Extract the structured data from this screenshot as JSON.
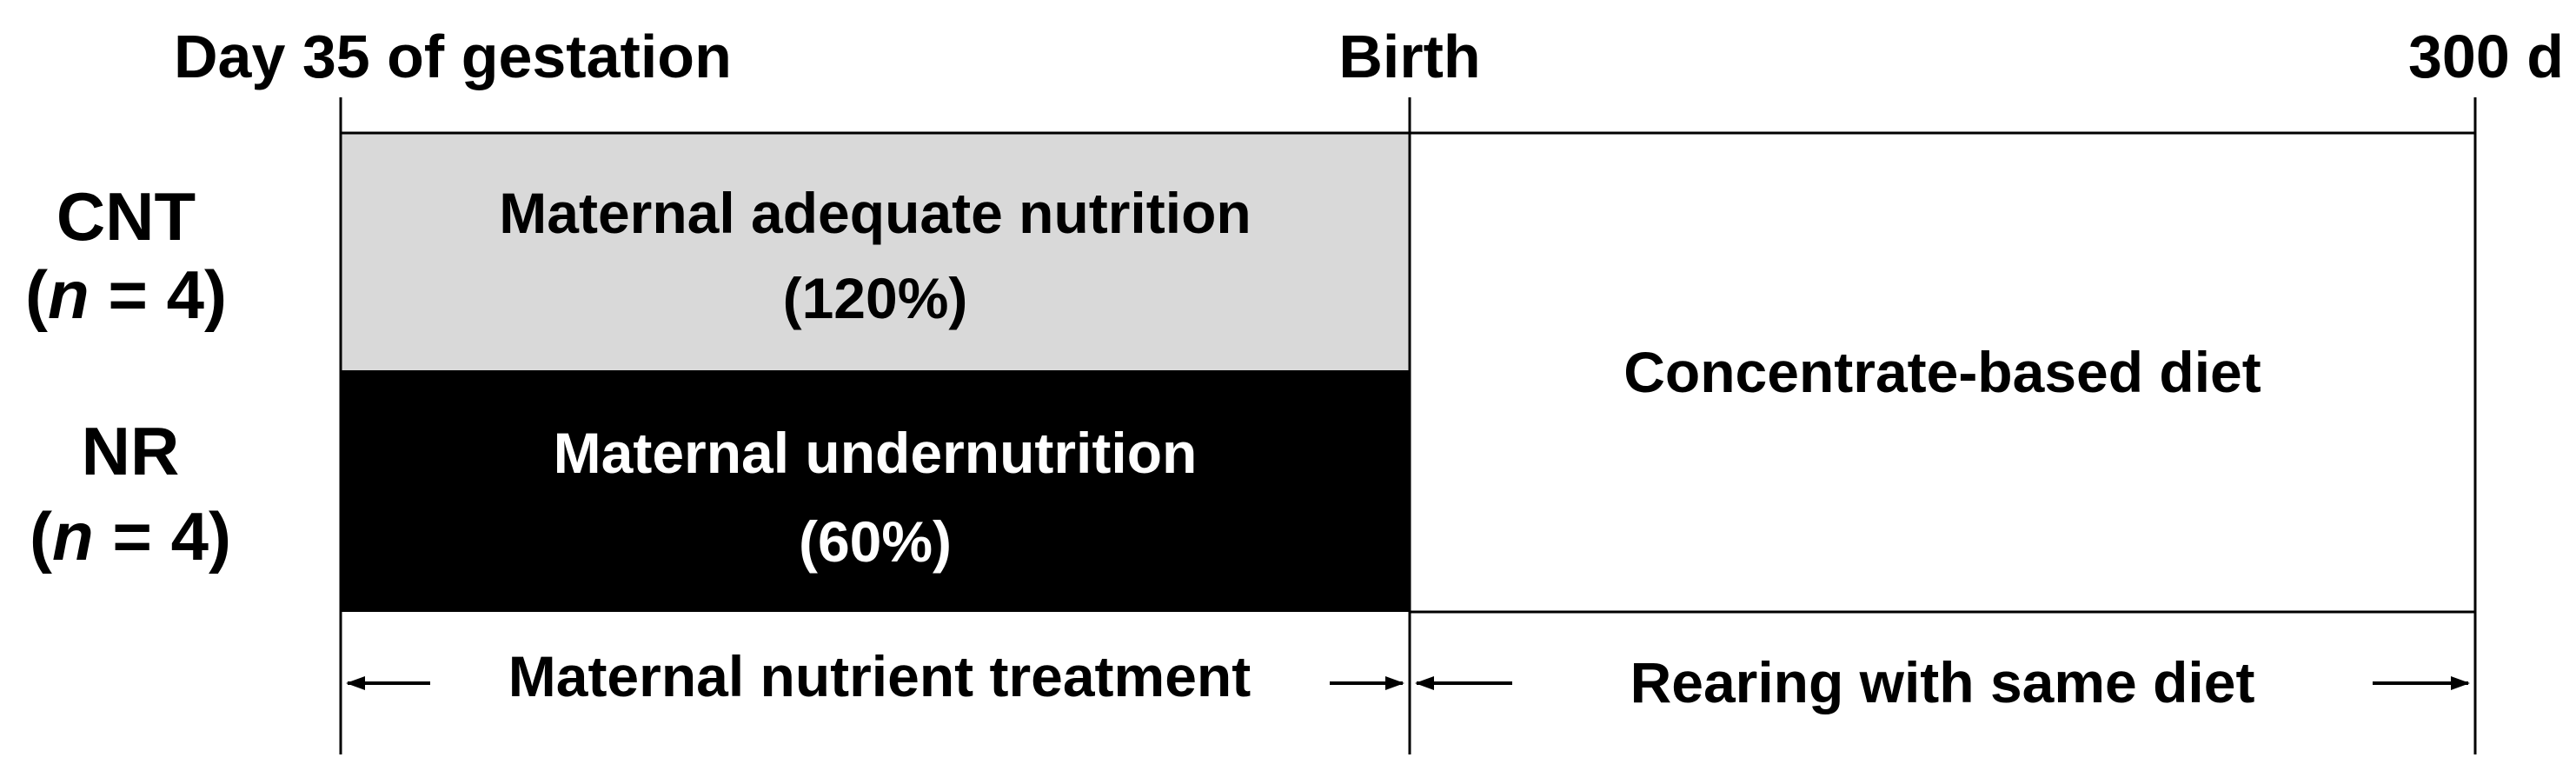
{
  "timeline": {
    "start_label": "Day 35 of gestation",
    "mid_label": "Birth",
    "end_label": "300 d"
  },
  "groups": [
    {
      "name": "CNT",
      "n_prefix": "(",
      "n_var": "n",
      "n_suffix": " = 4)"
    },
    {
      "name": "NR",
      "n_prefix": "(",
      "n_var": "n",
      "n_suffix": " = 4)"
    }
  ],
  "boxes": {
    "cnt_line1": "Maternal adequate nutrition",
    "cnt_line2": "(120%)",
    "nr_line1": "Maternal undernutrition",
    "nr_line2": "(60%)",
    "post_text": "Concentrate-based diet"
  },
  "phases": {
    "treatment": "Maternal nutrient treatment",
    "rearing": "Rearing with same diet"
  },
  "colors": {
    "cnt_fill": "#d9d9d9",
    "nr_fill": "#000000",
    "post_fill": "#ffffff",
    "line": "#000000",
    "text_on_dark": "#ffffff"
  }
}
